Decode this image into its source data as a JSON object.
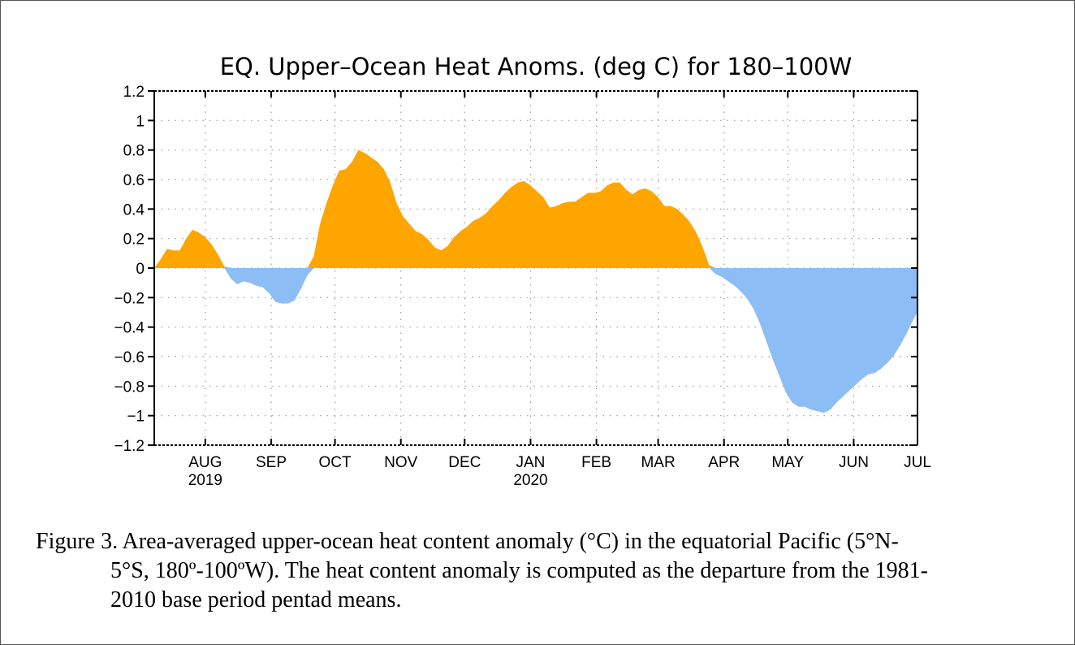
{
  "chart_data": {
    "type": "area",
    "title": "EQ. Upper–Ocean Heat Anoms. (deg C) for 180–100W",
    "xlabel": "",
    "ylabel": "",
    "ylim": [
      -1.2,
      1.2
    ],
    "yticks": [
      1.2,
      1,
      0.8,
      0.6,
      0.4,
      0.2,
      0,
      -0.2,
      -0.4,
      -0.6,
      -0.8,
      -1,
      -1.2
    ],
    "ytick_labels": [
      "1.2",
      "1",
      "0.8",
      "0.6",
      "0.4",
      "0.2",
      "0",
      "−0.2",
      "−0.4",
      "−0.6",
      "−0.8",
      "−1",
      "−1.2"
    ],
    "xlim": [
      "2019-07-08",
      "2020-07-01"
    ],
    "month_ticks": [
      {
        "date": "2019-08-01",
        "label": "AUG",
        "sublabel": "2019"
      },
      {
        "date": "2019-09-01",
        "label": "SEP",
        "sublabel": ""
      },
      {
        "date": "2019-10-01",
        "label": "OCT",
        "sublabel": ""
      },
      {
        "date": "2019-11-01",
        "label": "NOV",
        "sublabel": ""
      },
      {
        "date": "2019-12-01",
        "label": "DEC",
        "sublabel": ""
      },
      {
        "date": "2020-01-01",
        "label": "JAN",
        "sublabel": "2020"
      },
      {
        "date": "2020-02-01",
        "label": "FEB",
        "sublabel": ""
      },
      {
        "date": "2020-03-01",
        "label": "MAR",
        "sublabel": ""
      },
      {
        "date": "2020-04-01",
        "label": "APR",
        "sublabel": ""
      },
      {
        "date": "2020-05-01",
        "label": "MAY",
        "sublabel": ""
      },
      {
        "date": "2020-06-01",
        "label": "JUN",
        "sublabel": ""
      },
      {
        "date": "2020-07-01",
        "label": "JUL",
        "sublabel": ""
      }
    ],
    "grid": true,
    "colors": {
      "positive": "#FFA500",
      "negative": "#8DBDF5"
    },
    "series": [
      {
        "x": [
          "2019-07-08",
          "2019-07-11",
          "2019-07-14",
          "2019-07-17",
          "2019-07-20",
          "2019-07-23",
          "2019-07-26",
          "2019-07-29",
          "2019-08-01",
          "2019-08-04",
          "2019-08-07",
          "2019-08-10",
          "2019-08-13",
          "2019-08-16",
          "2019-08-19",
          "2019-08-22",
          "2019-08-25",
          "2019-08-28",
          "2019-08-31",
          "2019-09-03",
          "2019-09-06",
          "2019-09-09",
          "2019-09-12",
          "2019-09-15",
          "2019-09-18",
          "2019-09-21",
          "2019-09-24",
          "2019-09-27",
          "2019-09-30",
          "2019-10-03",
          "2019-10-06",
          "2019-10-09",
          "2019-10-12",
          "2019-10-15",
          "2019-10-18",
          "2019-10-21",
          "2019-10-24",
          "2019-10-27",
          "2019-10-30",
          "2019-11-02",
          "2019-11-05",
          "2019-11-08",
          "2019-11-11",
          "2019-11-14",
          "2019-11-17",
          "2019-11-20",
          "2019-11-23",
          "2019-11-26",
          "2019-11-29",
          "2019-12-02",
          "2019-12-05",
          "2019-12-08",
          "2019-12-11",
          "2019-12-14",
          "2019-12-17",
          "2019-12-20",
          "2019-12-23",
          "2019-12-26",
          "2019-12-29",
          "2020-01-01",
          "2020-01-04",
          "2020-01-07",
          "2020-01-10",
          "2020-01-13",
          "2020-01-16",
          "2020-01-19",
          "2020-01-22",
          "2020-01-25",
          "2020-01-28",
          "2020-01-31",
          "2020-02-03",
          "2020-02-06",
          "2020-02-09",
          "2020-02-12",
          "2020-02-15",
          "2020-02-18",
          "2020-02-21",
          "2020-02-24",
          "2020-02-27",
          "2020-03-01",
          "2020-03-04",
          "2020-03-07",
          "2020-03-10",
          "2020-03-13",
          "2020-03-16",
          "2020-03-19",
          "2020-03-22",
          "2020-03-25",
          "2020-03-28",
          "2020-03-31",
          "2020-04-03",
          "2020-04-06",
          "2020-04-09",
          "2020-04-12",
          "2020-04-15",
          "2020-04-18",
          "2020-04-21",
          "2020-04-24",
          "2020-04-27",
          "2020-04-30",
          "2020-05-03",
          "2020-05-06",
          "2020-05-09",
          "2020-05-12",
          "2020-05-15",
          "2020-05-18",
          "2020-05-21",
          "2020-05-24",
          "2020-05-27",
          "2020-05-30",
          "2020-06-02",
          "2020-06-05",
          "2020-06-08",
          "2020-06-11",
          "2020-06-14",
          "2020-06-17",
          "2020-06-20",
          "2020-06-23",
          "2020-06-26",
          "2020-06-29",
          "2020-07-01"
        ],
        "y": [
          0.0,
          0.06,
          0.13,
          0.12,
          0.12,
          0.2,
          0.26,
          0.24,
          0.21,
          0.16,
          0.09,
          0.01,
          -0.07,
          -0.11,
          -0.09,
          -0.1,
          -0.12,
          -0.13,
          -0.17,
          -0.23,
          -0.24,
          -0.24,
          -0.22,
          -0.14,
          -0.05,
          0.08,
          0.3,
          0.44,
          0.56,
          0.66,
          0.67,
          0.72,
          0.8,
          0.78,
          0.75,
          0.72,
          0.67,
          0.58,
          0.44,
          0.35,
          0.3,
          0.25,
          0.23,
          0.19,
          0.14,
          0.12,
          0.15,
          0.21,
          0.25,
          0.28,
          0.32,
          0.34,
          0.37,
          0.42,
          0.46,
          0.51,
          0.55,
          0.58,
          0.59,
          0.56,
          0.52,
          0.48,
          0.41,
          0.42,
          0.44,
          0.45,
          0.45,
          0.48,
          0.51,
          0.51,
          0.52,
          0.56,
          0.58,
          0.58,
          0.53,
          0.5,
          0.53,
          0.54,
          0.52,
          0.48,
          0.42,
          0.42,
          0.4,
          0.36,
          0.31,
          0.24,
          0.14,
          0.02,
          -0.04,
          -0.06,
          -0.09,
          -0.12,
          -0.16,
          -0.21,
          -0.28,
          -0.38,
          -0.5,
          -0.62,
          -0.73,
          -0.84,
          -0.91,
          -0.94,
          -0.94,
          -0.96,
          -0.97,
          -0.98,
          -0.96,
          -0.91,
          -0.87,
          -0.83,
          -0.79,
          -0.75,
          -0.72,
          -0.71,
          -0.68,
          -0.64,
          -0.59,
          -0.52,
          -0.44,
          -0.35,
          -0.3
        ]
      }
    ]
  },
  "caption": {
    "line1": "Figure 3. Area-averaged upper-ocean heat content anomaly (°C) in the equatorial Pacific (5°N-",
    "line2": "5°S, 180º-100ºW). The heat content anomaly is computed as the departure from the 1981-",
    "line3": "2010 base period pentad means."
  }
}
